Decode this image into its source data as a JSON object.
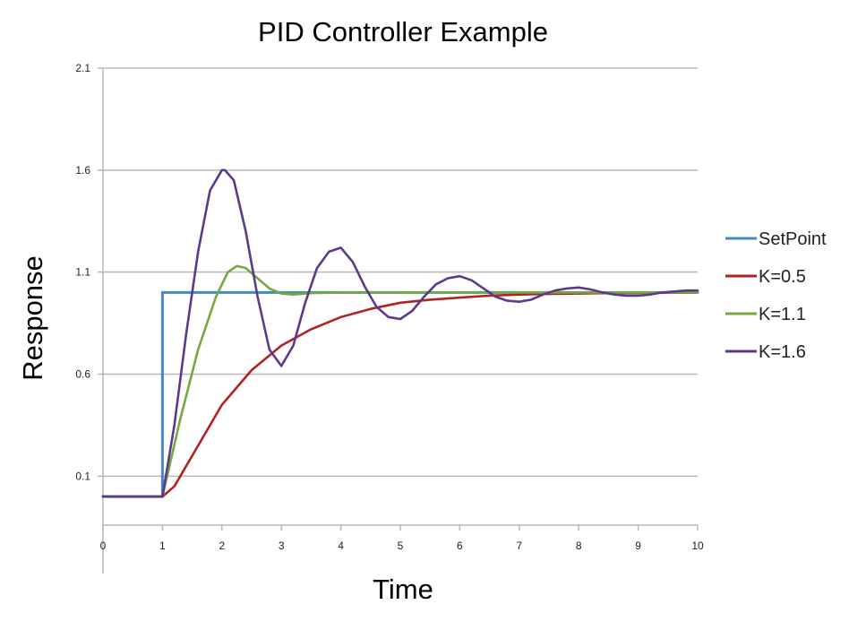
{
  "chart_data": {
    "type": "line",
    "title": "PID Controller Example",
    "xlabel": "Time",
    "ylabel": "Response",
    "xlim": [
      0,
      10
    ],
    "ylim": [
      -0.14,
      2.1
    ],
    "x_ticks": [
      0,
      1,
      2,
      3,
      4,
      5,
      6,
      7,
      8,
      9,
      10
    ],
    "y_ticks": [
      0.1,
      0.6,
      1.1,
      1.6,
      2.1
    ],
    "grid": "horizontal",
    "legend_position": "right",
    "series": [
      {
        "name": "SetPoint",
        "color": "#4a86c5",
        "x": [
          0,
          1,
          1,
          10
        ],
        "y": [
          0,
          0,
          1,
          1
        ]
      },
      {
        "name": "K=0.5",
        "color": "#b22222",
        "x": [
          0,
          1,
          1.2,
          1.5,
          2,
          2.5,
          3,
          3.5,
          4,
          4.5,
          5,
          5.5,
          6,
          6.5,
          7,
          7.5,
          8,
          8.5,
          9,
          9.5,
          10
        ],
        "y": [
          0,
          0,
          0.05,
          0.2,
          0.45,
          0.62,
          0.74,
          0.82,
          0.88,
          0.92,
          0.95,
          0.965,
          0.975,
          0.985,
          0.99,
          0.993,
          0.995,
          0.997,
          0.998,
          0.999,
          1.0
        ]
      },
      {
        "name": "K=1.1",
        "color": "#77a83f",
        "x": [
          0,
          1,
          1.3,
          1.6,
          1.9,
          2.1,
          2.25,
          2.4,
          2.6,
          2.8,
          3.0,
          3.2,
          3.5,
          4,
          5,
          6,
          7,
          8,
          9,
          10
        ],
        "y": [
          0,
          0,
          0.38,
          0.72,
          0.98,
          1.1,
          1.13,
          1.12,
          1.07,
          1.02,
          0.995,
          0.99,
          0.997,
          1.0,
          1.0,
          1.0,
          1.0,
          1.0,
          1.0,
          1.0
        ]
      },
      {
        "name": "K=1.6",
        "color": "#5b3a8c",
        "x": [
          0,
          1,
          1.2,
          1.4,
          1.6,
          1.8,
          2.0,
          2.05,
          2.2,
          2.4,
          2.6,
          2.8,
          3.0,
          3.2,
          3.4,
          3.6,
          3.8,
          4.0,
          4.2,
          4.4,
          4.6,
          4.8,
          5.0,
          5.2,
          5.4,
          5.6,
          5.8,
          6.0,
          6.2,
          6.4,
          6.6,
          6.8,
          7.0,
          7.2,
          7.4,
          7.6,
          7.8,
          8.0,
          8.2,
          8.4,
          8.6,
          8.8,
          9.0,
          9.2,
          9.4,
          9.6,
          9.8,
          10
        ],
        "y": [
          0,
          0,
          0.35,
          0.8,
          1.2,
          1.5,
          1.6,
          1.6,
          1.55,
          1.3,
          0.98,
          0.72,
          0.64,
          0.74,
          0.95,
          1.12,
          1.2,
          1.22,
          1.15,
          1.03,
          0.93,
          0.88,
          0.87,
          0.91,
          0.98,
          1.04,
          1.07,
          1.08,
          1.06,
          1.02,
          0.98,
          0.96,
          0.955,
          0.965,
          0.99,
          1.01,
          1.02,
          1.025,
          1.015,
          1.0,
          0.99,
          0.985,
          0.985,
          0.99,
          1.0,
          1.005,
          1.01,
          1.01
        ]
      }
    ]
  }
}
